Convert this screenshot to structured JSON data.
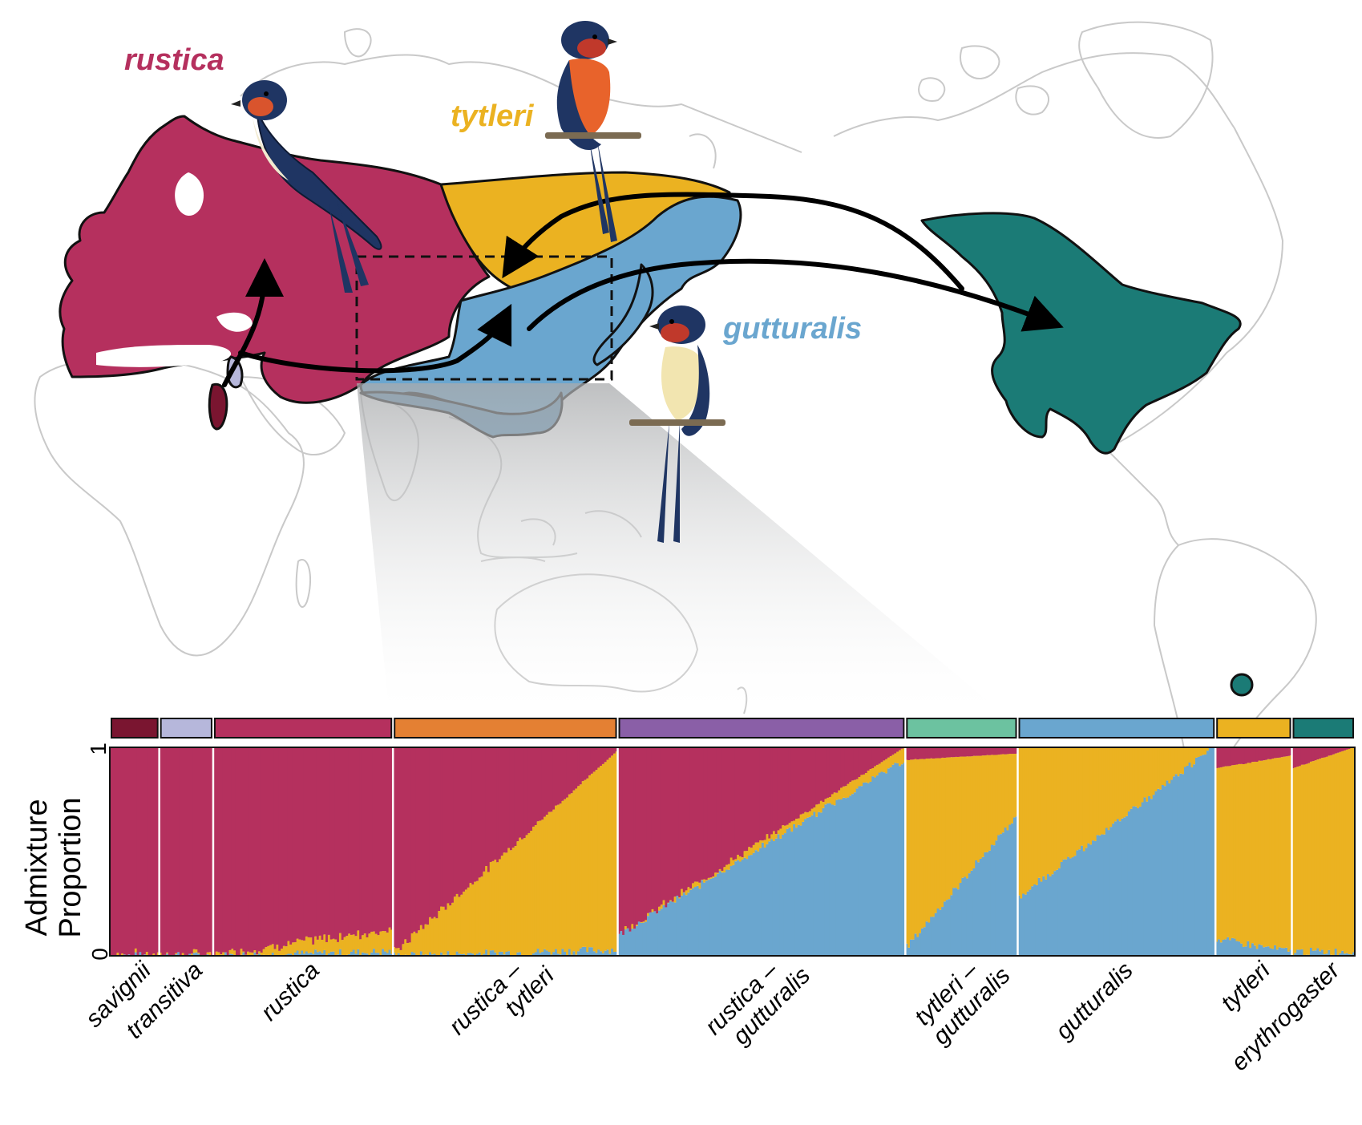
{
  "map": {
    "labels": [
      {
        "key": "rustica",
        "text": "rustica"
      },
      {
        "key": "tytleri",
        "text": "tytleri"
      },
      {
        "key": "gutturalis",
        "text": "gutturalis"
      }
    ],
    "colors": {
      "rustica": "#b5305e",
      "tytleri": "#ebb221",
      "gutturalis": "#6aa6cf",
      "erythrogaster": "#1b7b76",
      "savignii": "#7a1530",
      "transitiva": "#b6b7db",
      "coastline": "#c9c9c9"
    },
    "icons": [
      "barn-swallow-rustica-illustration",
      "barn-swallow-tytleri-illustration",
      "barn-swallow-gutturalis-illustration"
    ]
  },
  "chart_data": {
    "type": "bar",
    "subtype": "stacked-admixture",
    "ylabel_lines": [
      "Admixture",
      "Proportion"
    ],
    "ylim": [
      0,
      1
    ],
    "yticks": [
      "0",
      "1"
    ],
    "components": [
      {
        "key": "gutturalis",
        "color": "#6aa6cf"
      },
      {
        "key": "tytleri",
        "color": "#ebb221"
      },
      {
        "key": "rustica",
        "color": "#b5305e"
      }
    ],
    "groups": [
      {
        "label": [
          "savignii"
        ],
        "color": "#7a1530",
        "n": 22,
        "rustica": [
          1,
          1
        ],
        "tytleri": [
          0,
          0
        ],
        "gutturalis": [
          0,
          0
        ]
      },
      {
        "label": [
          "transitiva"
        ],
        "color": "#b6b7db",
        "n": 24,
        "rustica": [
          1,
          1
        ],
        "tytleri": [
          0,
          0
        ],
        "gutturalis": [
          0,
          0
        ]
      },
      {
        "label": [
          "rustica"
        ],
        "color": "#b5305e",
        "n": 80,
        "rustica": [
          1,
          0.87
        ],
        "tytleri": [
          0,
          0.11
        ],
        "gutturalis": [
          0,
          0.02
        ]
      },
      {
        "label": [
          "rustica –",
          "tytleri"
        ],
        "color": "#e48033",
        "n": 100,
        "rustica": [
          0.99,
          0.02
        ],
        "tytleri": [
          0.01,
          0.95
        ],
        "gutturalis": [
          0,
          0.03
        ]
      },
      {
        "label": [
          "rustica –",
          "gutturalis"
        ],
        "color": "#8a5fa7",
        "n": 128,
        "rustica": [
          0.9,
          0.0
        ],
        "tytleri": [
          0.0,
          0.06
        ],
        "gutturalis": [
          0.1,
          0.94
        ]
      },
      {
        "label": [
          "tytleri –",
          "gutturalis"
        ],
        "color": "#6cc2a0",
        "n": 50,
        "rustica": [
          0.06,
          0.03
        ],
        "tytleri": [
          0.9,
          0.3
        ],
        "gutturalis": [
          0.04,
          0.67
        ]
      },
      {
        "label": [
          "gutturalis"
        ],
        "color": "#6aa6cf",
        "n": 88,
        "rustica": [
          0.0,
          0.0
        ],
        "tytleri": [
          0.72,
          0.0
        ],
        "gutturalis": [
          0.28,
          1.0
        ]
      },
      {
        "label": [
          "tytleri"
        ],
        "color": "#ebb221",
        "n": 34,
        "rustica": [
          0.1,
          0.04
        ],
        "tytleri": [
          0.82,
          0.94
        ],
        "gutturalis": [
          0.08,
          0.02
        ]
      },
      {
        "label": [
          "erythrogaster"
        ],
        "color": "#1b7b76",
        "n": 28,
        "rustica": [
          0.1,
          0.0
        ],
        "tytleri": [
          0.88,
          0.98
        ],
        "gutturalis": [
          0.02,
          0.02
        ]
      }
    ]
  }
}
